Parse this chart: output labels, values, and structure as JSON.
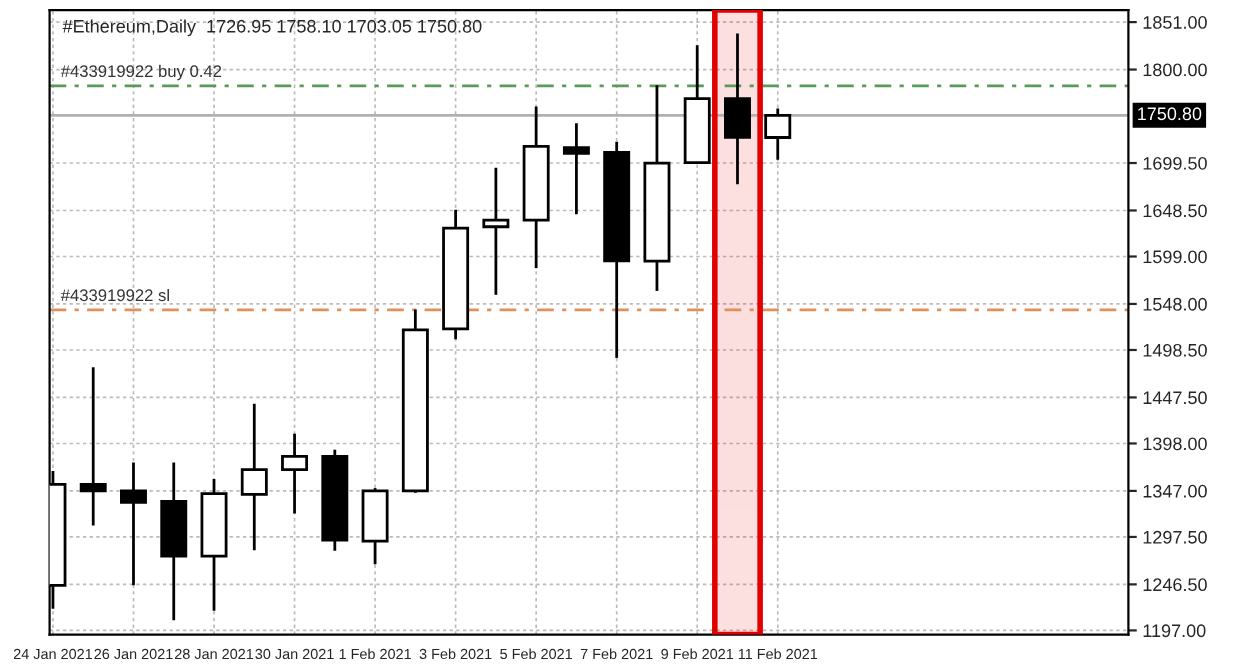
{
  "chart_data": {
    "type": "candlestick",
    "title": "#Ethereum,Daily  1726.95 1758.10 1703.05 1750.80",
    "x": [
      "2021-01-24",
      "2021-01-25",
      "2021-01-26",
      "2021-01-27",
      "2021-01-28",
      "2021-01-29",
      "2021-01-30",
      "2021-01-31",
      "2021-02-01",
      "2021-02-02",
      "2021-02-03",
      "2021-02-04",
      "2021-02-05",
      "2021-02-06",
      "2021-02-07",
      "2021-02-08",
      "2021-02-09",
      "2021-02-10",
      "2021-02-11"
    ],
    "ohlc": [
      [
        1245.5,
        1368.4,
        1220.4,
        1354.0
      ],
      [
        1354.0,
        1480.0,
        1309.8,
        1347.0
      ],
      [
        1347.0,
        1377.6,
        1245.5,
        1334.7
      ],
      [
        1335.6,
        1377.6,
        1208.0,
        1276.8
      ],
      [
        1276.8,
        1359.8,
        1218.2,
        1344.1
      ],
      [
        1343.3,
        1440.7,
        1283.2,
        1369.9
      ],
      [
        1369.9,
        1408.5,
        1322.7,
        1384.0
      ],
      [
        1384.0,
        1391.3,
        1282.6,
        1294.0
      ],
      [
        1293.0,
        1350.0,
        1268.2,
        1347.0
      ],
      [
        1347.0,
        1542.0,
        1345.0,
        1520.0
      ],
      [
        1521.3,
        1649.4,
        1510.0,
        1629.4
      ],
      [
        1631.0,
        1694.4,
        1557.8,
        1638.0
      ],
      [
        1638.0,
        1760.3,
        1586.5,
        1717.4
      ],
      [
        1716.0,
        1742.3,
        1644.4,
        1710.0
      ],
      [
        1711.0,
        1722.3,
        1490.0,
        1594.2
      ],
      [
        1594.0,
        1783.0,
        1562.0,
        1699.3
      ],
      [
        1700.0,
        1826.0,
        1699.0,
        1768.8
      ],
      [
        1768.8,
        1838.8,
        1676.6,
        1727.2
      ],
      [
        1726.95,
        1758.1,
        1703.05,
        1750.8
      ]
    ],
    "xlim": [
      "2021-01-23T22:00",
      "2021-02-19T17:00"
    ],
    "xticks": [
      {
        "value": "2021-01-24",
        "label": "24 Jan 2021"
      },
      {
        "value": "2021-01-26",
        "label": "26 Jan 2021"
      },
      {
        "value": "2021-01-28",
        "label": "28 Jan 2021"
      },
      {
        "value": "2021-01-30",
        "label": "30 Jan 2021"
      },
      {
        "value": "2021-02-01",
        "label": "1 Feb 2021"
      },
      {
        "value": "2021-02-03",
        "label": "3 Feb 2021"
      },
      {
        "value": "2021-02-05",
        "label": "5 Feb 2021"
      },
      {
        "value": "2021-02-07",
        "label": "7 Feb 2021"
      },
      {
        "value": "2021-02-09",
        "label": "9 Feb 2021"
      },
      {
        "value": "2021-02-11",
        "label": "11 Feb 2021"
      }
    ],
    "ylim": [
      1192.5,
      1864
    ],
    "yticks": [
      {
        "value": 1197,
        "label": "1197.00"
      },
      {
        "value": 1246.5,
        "label": "1246.50"
      },
      {
        "value": 1297.5,
        "label": "1297.50"
      },
      {
        "value": 1347,
        "label": "1347.00"
      },
      {
        "value": 1398,
        "label": "1398.00"
      },
      {
        "value": 1447.5,
        "label": "1447.50"
      },
      {
        "value": 1498.5,
        "label": "1498.50"
      },
      {
        "value": 1548,
        "label": "1548.00"
      },
      {
        "value": 1599,
        "label": "1599.00"
      },
      {
        "value": 1648.5,
        "label": "1648.50"
      },
      {
        "value": 1699.5,
        "label": "1699.50"
      },
      {
        "value": 1800,
        "label": "1800.00"
      },
      {
        "value": 1851,
        "label": "1851.00"
      }
    ],
    "ref_lines": [
      {
        "axis": "y",
        "value": 1782.4,
        "label": "#433919922 buy 0.42",
        "color": "#5a9a5a",
        "line_style": "dashed"
      },
      {
        "axis": "y",
        "value": 1541.5,
        "label": "#433919922 sl",
        "color": "#e0905a",
        "line_style": "dashed"
      },
      {
        "axis": "y",
        "value": 1750.8,
        "label": "1750.80",
        "color": "#b0b0b0",
        "line_style": "solid"
      }
    ],
    "bands": [
      {
        "axis": "x",
        "from": "2021-02-09T10:30",
        "to": "2021-02-10T13:30",
        "color": "#e00000"
      }
    ],
    "grid": true,
    "legend": false
  }
}
